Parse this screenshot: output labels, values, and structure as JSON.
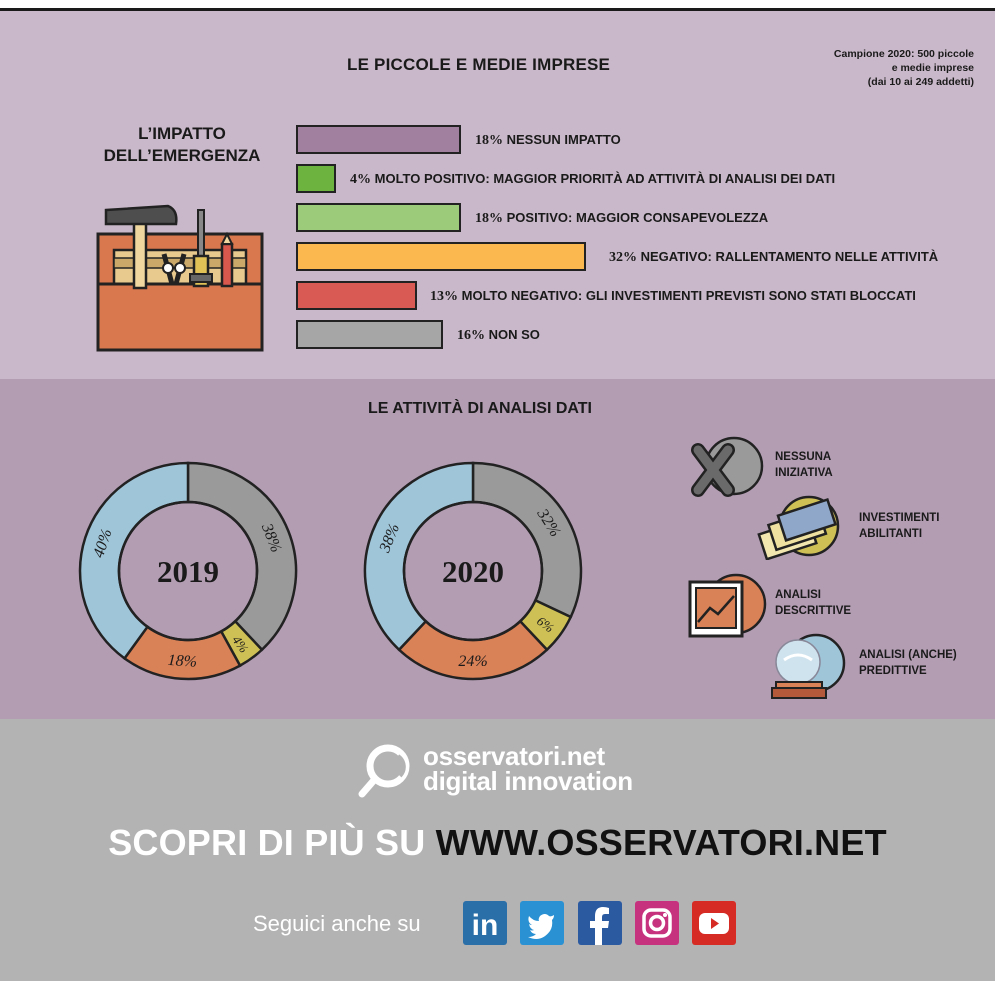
{
  "header": {
    "title": "LE PICCOLE E MEDIE IMPRESE",
    "sample_lines": [
      "Campione 2020: 500 piccole",
      "e medie imprese",
      "(dai 10 ai 249 addetti)"
    ]
  },
  "impact": {
    "title_lines": [
      "L’IMPATTO",
      "DELL’EMERGENZA"
    ]
  },
  "colors": {
    "nessun_impatto": "#a07f9f",
    "molto_positivo": "#6db33f",
    "positivo": "#9ccc7a",
    "negativo": "#fbb84e",
    "molto_negativo": "#d95a54",
    "non_so": "#a6a6a6",
    "nessuna_iniziativa": "#9a9a9a",
    "investimenti_abilitanti": "#cfc056",
    "analisi_descrittive": "#d98157",
    "analisi_predittive": "#9fc5d9"
  },
  "chart_data": [
    {
      "type": "bar",
      "title": "L’IMPATTO DELL’EMERGENZA",
      "categories": [
        "NESSUN IMPATTO",
        "MOLTO POSITIVO: MAGGIOR PRIORITÀ AD ATTIVITÀ DI ANALISI DEI DATI",
        "POSITIVO: MAGGIOR CONSAPEVOLEZZA",
        "NEGATIVO: RALLENTAMENTO NELLE ATTIVITÀ",
        "MOLTO NEGATIVO: GLI INVESTIMENTI PREVISTI SONO STATI BLOCCATI",
        "NON SO"
      ],
      "values": [
        18,
        4,
        18,
        32,
        13,
        16
      ],
      "labels": [
        "18%",
        "4%",
        "18%",
        "32%",
        "13%",
        "16%"
      ],
      "colors": [
        "#a07f9f",
        "#6db33f",
        "#9ccc7a",
        "#fbb84e",
        "#d95a54",
        "#a6a6a6"
      ]
    },
    {
      "type": "pie",
      "title": "LE ATTIVITÀ DI ANALISI DATI",
      "center_label": "2019",
      "categories": [
        "NESSUNA INIZIATIVA",
        "INVESTIMENTI ABILITANTI",
        "ANALISI DESCRITTIVE",
        "ANALISI (ANCHE) PREDITTIVE"
      ],
      "values": [
        38,
        4,
        18,
        40
      ],
      "labels": [
        "38%",
        "4%",
        "18%",
        "40%"
      ]
    },
    {
      "type": "pie",
      "title": "LE ATTIVITÀ DI ANALISI DATI",
      "center_label": "2020",
      "categories": [
        "NESSUNA INIZIATIVA",
        "INVESTIMENTI ABILITANTI",
        "ANALISI DESCRITTIVE",
        "ANALISI (ANCHE) PREDITTIVE"
      ],
      "values": [
        32,
        6,
        24,
        38
      ],
      "labels": [
        "32%",
        "6%",
        "24%",
        "38%"
      ]
    }
  ],
  "analysis": {
    "title": "LE ATTIVITÀ DI ANALISI DATI",
    "legend": [
      {
        "lines": [
          "NESSUNA",
          "INIZIATIVA"
        ],
        "icon": "x-circle-icon"
      },
      {
        "lines": [
          "INVESTIMENTI",
          "ABILITANTI"
        ],
        "icon": "money-icon"
      },
      {
        "lines": [
          "ANALISI",
          "DESCRITTIVE"
        ],
        "icon": "chart-frame-icon"
      },
      {
        "lines": [
          "ANALISI (ANCHE)",
          "PREDITTIVE"
        ],
        "icon": "crystal-ball-icon"
      }
    ]
  },
  "footer": {
    "logo_lines": [
      "osservatori.net",
      "digital innovation"
    ],
    "cta_prefix": "SCOPRI DI PIÙ SU ",
    "cta_url": "WWW.OSSERVATORI.NET",
    "follow_text": "Seguici anche su",
    "social": [
      {
        "icon": "linkedin-icon",
        "glyph": "in",
        "color": "#2a6fa8"
      },
      {
        "icon": "twitter-icon",
        "glyph": "",
        "color": "#2a91d2"
      },
      {
        "icon": "facebook-icon",
        "glyph": "f",
        "color": "#2b5aa1"
      },
      {
        "icon": "instagram-icon",
        "glyph": "",
        "color": "#c7327f"
      },
      {
        "icon": "youtube-icon",
        "glyph": "",
        "color": "#d52b24"
      }
    ]
  }
}
